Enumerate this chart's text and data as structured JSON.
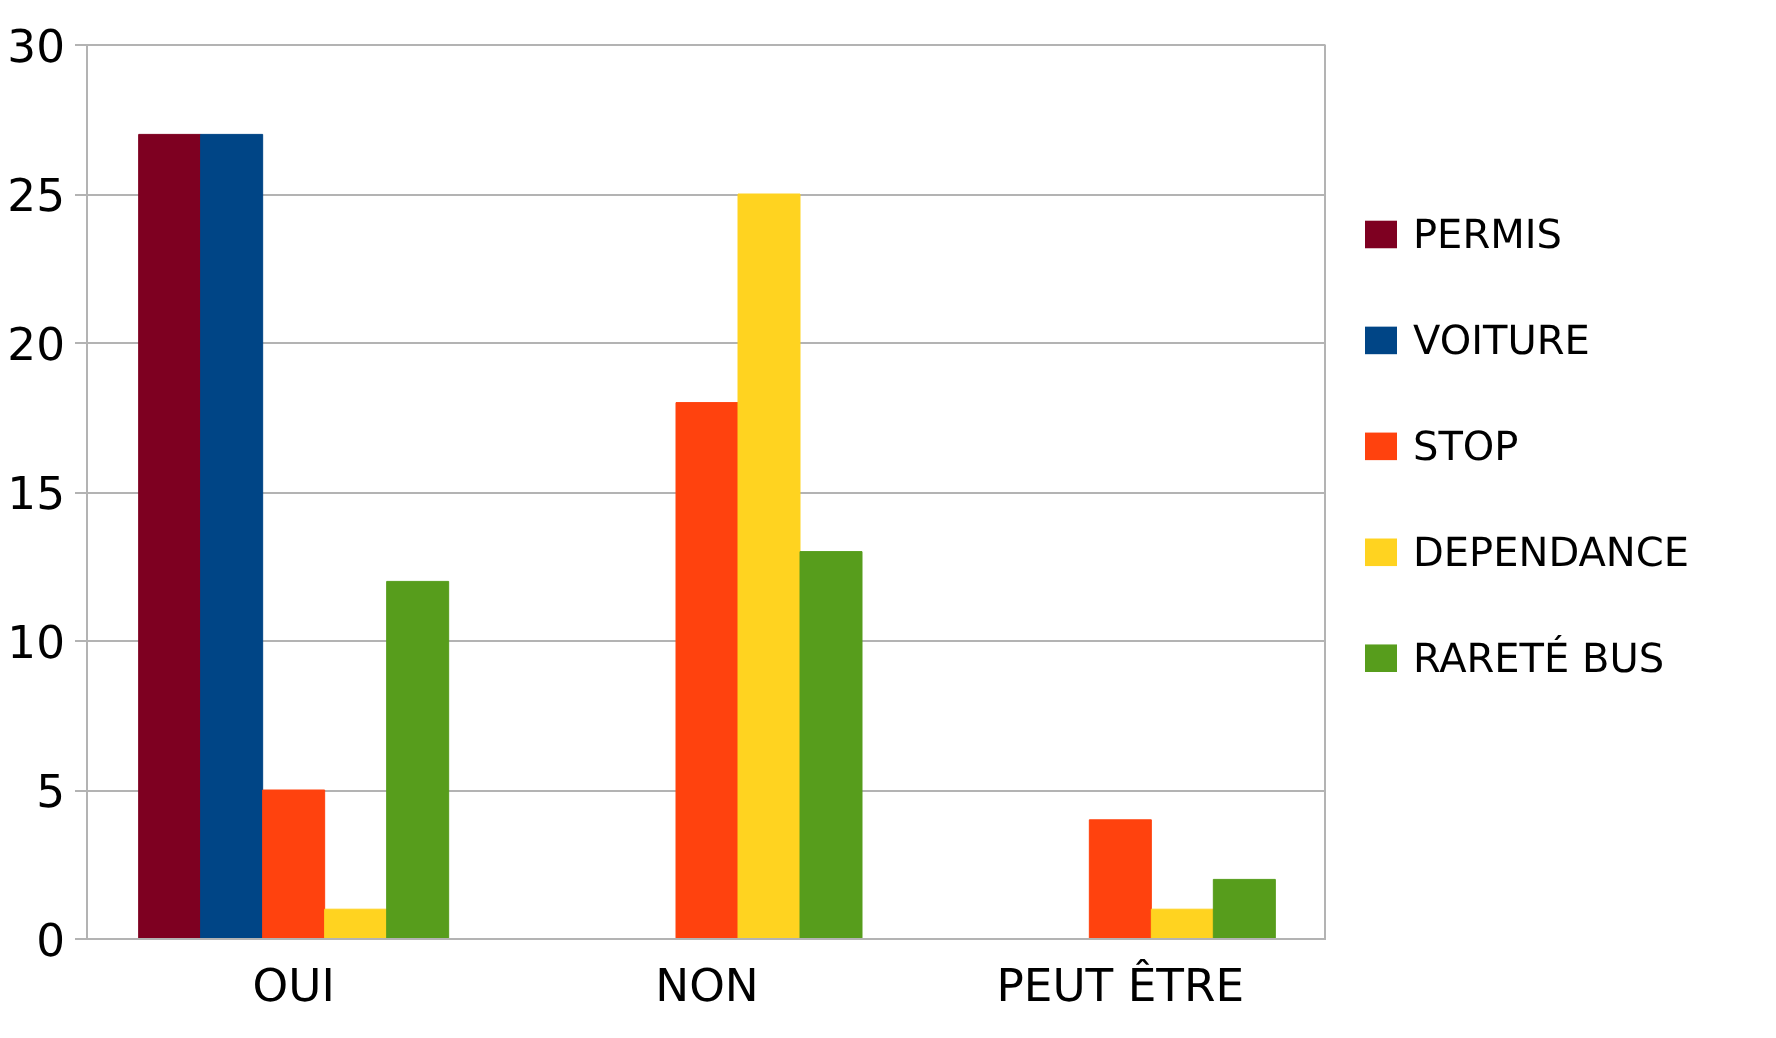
{
  "chart_data": {
    "type": "bar",
    "categories": [
      "OUI",
      "NON",
      "PEUT ÊTRE"
    ],
    "series": [
      {
        "name": "PERMIS",
        "color": "#7e0021",
        "values": [
          27,
          0,
          0
        ]
      },
      {
        "name": "VOITURE",
        "color": "#004586",
        "values": [
          27,
          0,
          0
        ]
      },
      {
        "name": "STOP",
        "color": "#ff420e",
        "values": [
          5,
          18,
          4
        ]
      },
      {
        "name": "DEPENDANCE",
        "color": "#ffd320",
        "values": [
          1,
          25,
          1
        ]
      },
      {
        "name": "RARETÉ BUS",
        "color": "#579d1c",
        "values": [
          12,
          13,
          2
        ]
      }
    ],
    "ylim": [
      0,
      30
    ],
    "yticks": [
      0,
      5,
      10,
      15,
      20,
      25,
      30
    ],
    "grid": "y",
    "legend": "right"
  }
}
